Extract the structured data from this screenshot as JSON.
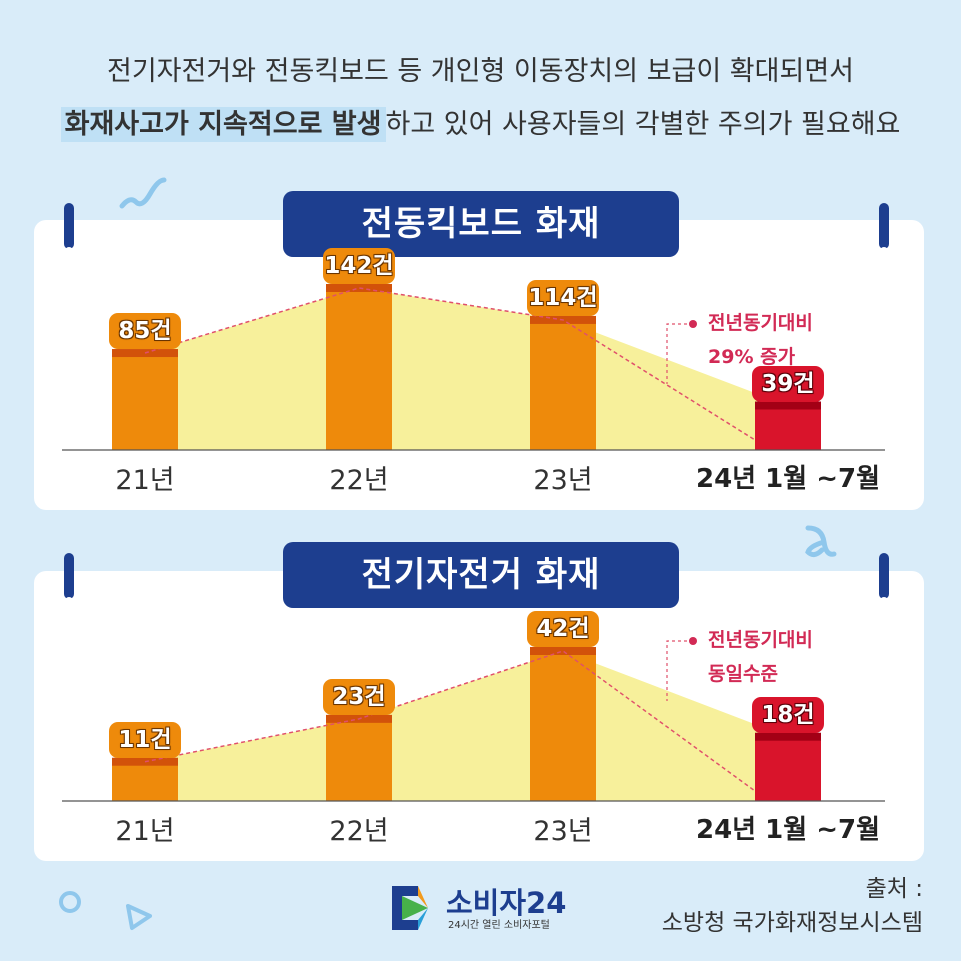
{
  "headline": {
    "line1": "전기자전거와 전동킥보드 등 개인형 이동장치의 보급이 확대되면서",
    "line2_highlight": "화재사고가 지속적으로 발생",
    "line2_rest": "하고 있어 사용자들의 각별한 주의가 필요해요"
  },
  "chart_data": [
    {
      "type": "bar",
      "title": "전동킥보드 화재",
      "categories": [
        "21년",
        "22년",
        "23년",
        "24년 1월 ~7월"
      ],
      "values": [
        85,
        142,
        114,
        39
      ],
      "value_labels": [
        "85건",
        "142건",
        "114건",
        "39건"
      ],
      "annotation": [
        "전년동기대비",
        "29% 증가"
      ],
      "colors": {
        "bar": "#ee8a0b",
        "highlight": "#d9142b",
        "area": "#f7f09b",
        "trend": "#e0506b"
      }
    },
    {
      "type": "bar",
      "title": "전기자전거 화재",
      "categories": [
        "21년",
        "22년",
        "23년",
        "24년 1월 ~7월"
      ],
      "values": [
        11,
        23,
        42,
        18
      ],
      "value_labels": [
        "11건",
        "23건",
        "42건",
        "18건"
      ],
      "annotation": [
        "전년동기대비",
        "동일수준"
      ],
      "colors": {
        "bar": "#ee8a0b",
        "highlight": "#d9142b",
        "area": "#f7f09b",
        "trend": "#e0506b"
      }
    }
  ],
  "logo": {
    "name": "소비자24",
    "tagline": "24시간 열린 소비자포털"
  },
  "source": {
    "label": "출처 :",
    "value": "소방청 국가화재정보시스템"
  }
}
